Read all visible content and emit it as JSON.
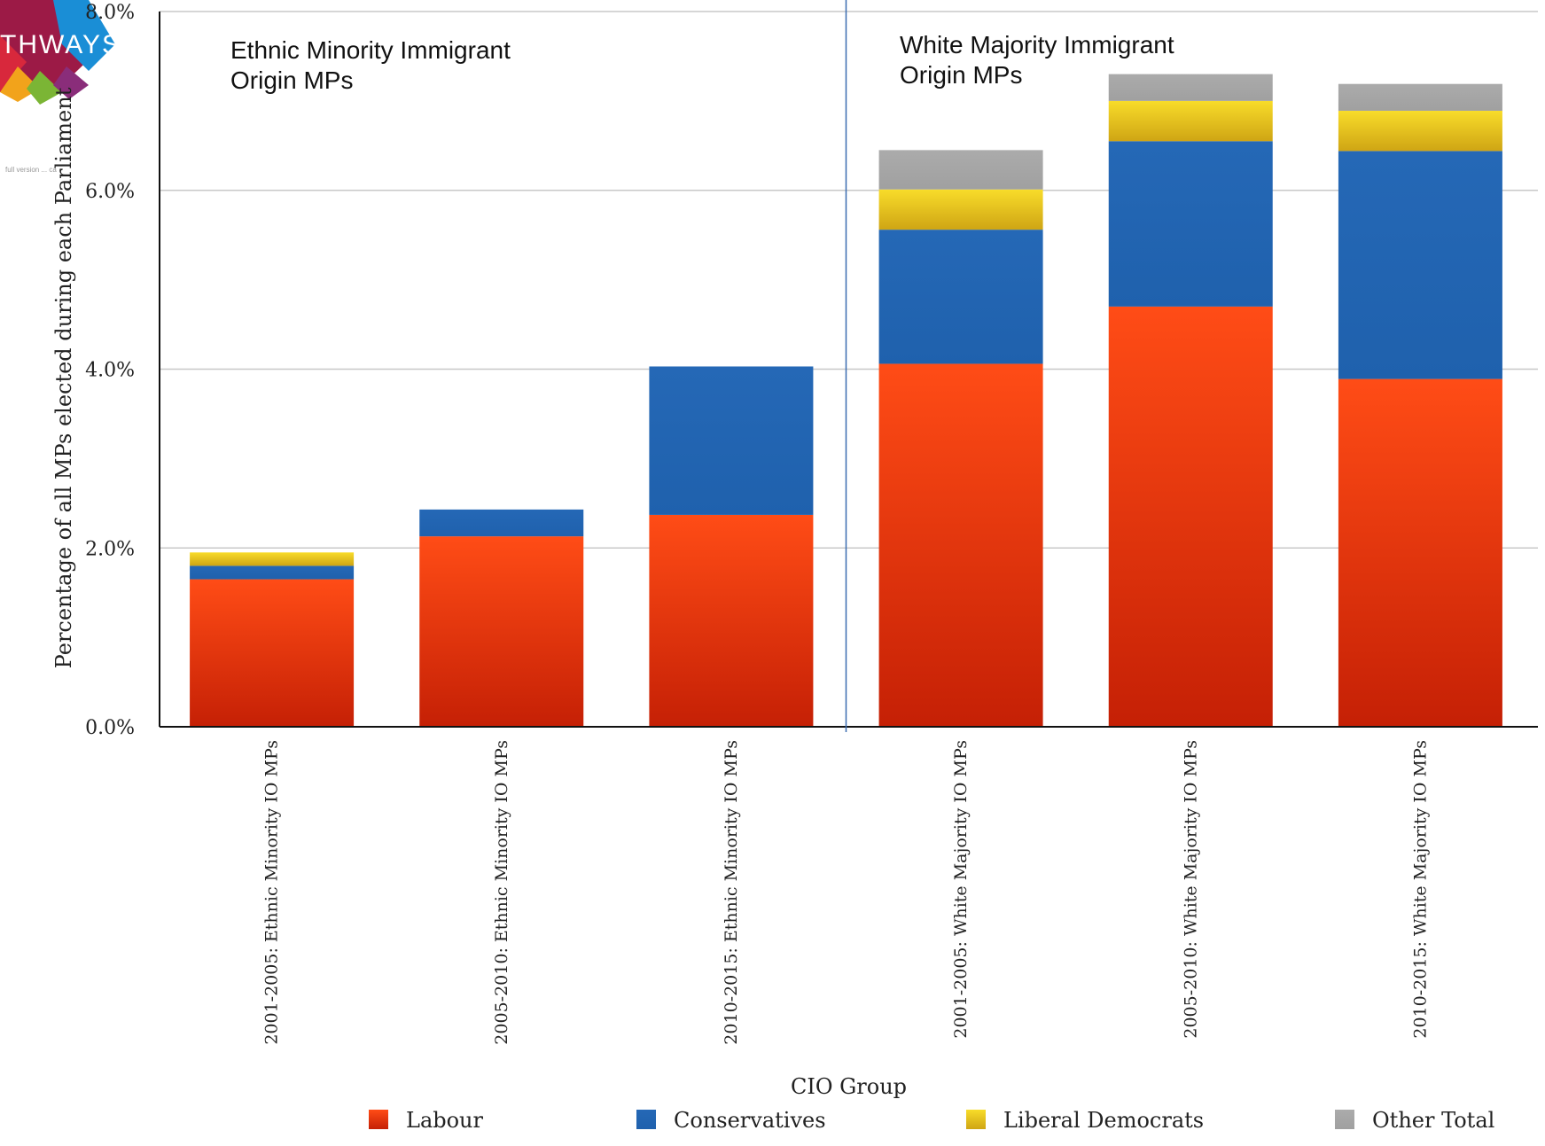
{
  "logo": {
    "text": "THWAYS",
    "subtext": "full version ... ca"
  },
  "chart_data": {
    "type": "bar",
    "stacked": true,
    "categories": [
      "2001-2005: Ethnic Minority IO MPs",
      "2005-2010: Ethnic Minority IO MPs",
      "2010-2015: Ethnic Minority IO MPs",
      "2001-2005: White Majority IO MPs",
      "2005-2010: White Majority IO MPs",
      "2010-2015: White Majority IO MPs"
    ],
    "series": [
      {
        "name": "Labour",
        "color": "#e8401a",
        "values": [
          1.65,
          2.13,
          2.37,
          4.06,
          4.7,
          3.89
        ]
      },
      {
        "name": "Conservatives",
        "color": "#2166b3",
        "values": [
          0.15,
          0.3,
          1.66,
          1.5,
          1.85,
          2.55
        ]
      },
      {
        "name": "Liberal Democrats",
        "color": "#f0c419",
        "values": [
          0.15,
          0.0,
          0.0,
          0.45,
          0.45,
          0.45
        ]
      },
      {
        "name": "Other Total",
        "color": "#a6a6a6",
        "values": [
          0.0,
          0.0,
          0.0,
          0.44,
          0.3,
          0.3
        ]
      }
    ],
    "ylim": [
      0,
      8
    ],
    "yticks": [
      "0.0%",
      "2.0%",
      "4.0%",
      "6.0%",
      "8.0%"
    ],
    "ylabel": "Percentage of all MPs elected during each Parliament",
    "xlabel": "CIO Group",
    "grid": true,
    "legend_position": "bottom",
    "annotations": [
      {
        "lines": [
          "Ethnic Minority Immigrant",
          "Origin MPs"
        ]
      },
      {
        "lines": [
          "White Majority Immigrant",
          "Origin MPs"
        ]
      }
    ]
  }
}
